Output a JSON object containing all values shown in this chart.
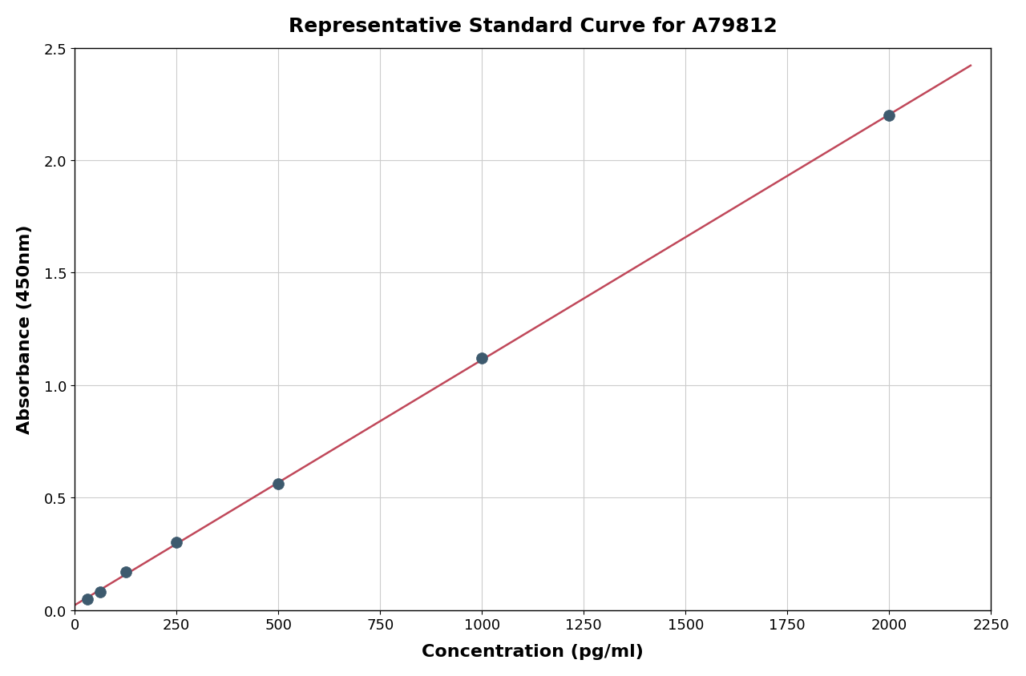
{
  "title": "Representative Standard Curve for A79812",
  "xlabel": "Concentration (pg/ml)",
  "ylabel": "Absorbance (450nm)",
  "x_data": [
    31.25,
    62.5,
    125,
    250,
    500,
    1000,
    2000
  ],
  "y_data": [
    0.05,
    0.08,
    0.17,
    0.3,
    0.56,
    1.12,
    2.2
  ],
  "xlim": [
    0,
    2250
  ],
  "ylim": [
    0,
    2.5
  ],
  "xticks": [
    0,
    250,
    500,
    750,
    1000,
    1250,
    1500,
    1750,
    2000,
    2250
  ],
  "yticks": [
    0.0,
    0.5,
    1.0,
    1.5,
    2.0,
    2.5
  ],
  "marker_color": "#3d5a6e",
  "line_color": "#c0485a",
  "marker_size": 10,
  "line_width": 1.8,
  "title_fontsize": 18,
  "label_fontsize": 16,
  "tick_fontsize": 13,
  "background_color": "#ffffff",
  "grid_color": "#cccccc",
  "title_fontweight": "bold"
}
